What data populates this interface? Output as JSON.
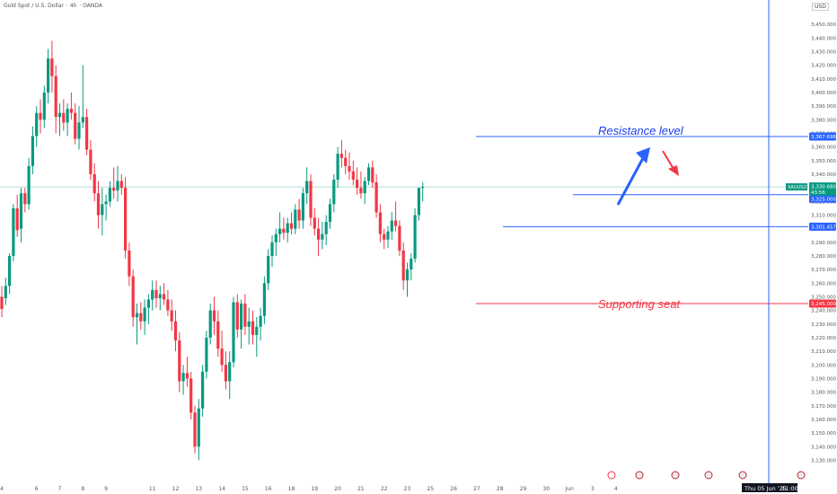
{
  "header": {
    "symbol_name": "Gold Spot / U.S. Dollar",
    "interval": "4h",
    "broker": "OANDA",
    "currency": "USD"
  },
  "colors": {
    "up": "#089981",
    "down": "#f23645",
    "resistance_line": "#2962ff",
    "support_line": "#f23645",
    "annotation_text": "#1e40e6",
    "support_text": "#f23645",
    "arrow_up": "#2962ff",
    "arrow_down": "#f23645",
    "vertical_marker": "#2962ff"
  },
  "chart_data": {
    "type": "candlestick",
    "ylim": [
      3125,
      3460
    ],
    "y_ticks": [
      "3,130.000",
      "3,140.000",
      "3,150.000",
      "3,160.000",
      "3,170.000",
      "3,180.000",
      "3,190.000",
      "3,200.000",
      "3,210.000",
      "3,220.000",
      "3,230.000",
      "3,240.000",
      "3,250.000",
      "3,260.000",
      "3,270.000",
      "3,280.000",
      "3,290.000",
      "3,300.000",
      "3,310.000",
      "3,320.000",
      "3,330.000",
      "3,340.000",
      "3,350.000",
      "3,360.000",
      "3,370.000",
      "3,380.000",
      "3,390.000",
      "3,400.000",
      "3,410.000",
      "3,420.000",
      "3,430.000",
      "3,440.000",
      "3,450.000"
    ],
    "x_ticks": [
      {
        "bar": 0,
        "label": "4"
      },
      {
        "bar": 9,
        "label": "6"
      },
      {
        "bar": 15,
        "label": "7"
      },
      {
        "bar": 21,
        "label": "8"
      },
      {
        "bar": 27,
        "label": "9"
      },
      {
        "bar": 39,
        "label": "11"
      },
      {
        "bar": 45,
        "label": "12"
      },
      {
        "bar": 51,
        "label": "13"
      },
      {
        "bar": 57,
        "label": "14"
      },
      {
        "bar": 63,
        "label": "15"
      },
      {
        "bar": 69,
        "label": "16"
      },
      {
        "bar": 75,
        "label": "18"
      },
      {
        "bar": 81,
        "label": "19"
      },
      {
        "bar": 87,
        "label": "20"
      },
      {
        "bar": 93,
        "label": "21"
      },
      {
        "bar": 99,
        "label": "22"
      },
      {
        "bar": 105,
        "label": "23"
      },
      {
        "bar": 111,
        "label": "25"
      },
      {
        "bar": 117,
        "label": "26"
      },
      {
        "bar": 123,
        "label": "27"
      },
      {
        "bar": 129,
        "label": "28"
      },
      {
        "bar": 135,
        "label": "29"
      },
      {
        "bar": 141,
        "label": "30"
      },
      {
        "bar": 147,
        "label": "Jun"
      },
      {
        "bar": 153,
        "label": "3"
      },
      {
        "bar": 159,
        "label": "4"
      }
    ],
    "candles": [
      {
        "o": 3250,
        "h": 3258,
        "l": 3235,
        "c": 3241
      },
      {
        "o": 3249,
        "h": 3264,
        "l": 3244,
        "c": 3258
      },
      {
        "o": 3258,
        "h": 3282,
        "l": 3252,
        "c": 3280
      },
      {
        "o": 3280,
        "h": 3318,
        "l": 3276,
        "c": 3315
      },
      {
        "o": 3315,
        "h": 3325,
        "l": 3294,
        "c": 3299
      },
      {
        "o": 3300,
        "h": 3330,
        "l": 3290,
        "c": 3326
      },
      {
        "o": 3326,
        "h": 3330,
        "l": 3312,
        "c": 3318
      },
      {
        "o": 3318,
        "h": 3352,
        "l": 3314,
        "c": 3346
      },
      {
        "o": 3346,
        "h": 3375,
        "l": 3340,
        "c": 3368
      },
      {
        "o": 3368,
        "h": 3390,
        "l": 3360,
        "c": 3385
      },
      {
        "o": 3385,
        "h": 3395,
        "l": 3370,
        "c": 3380
      },
      {
        "o": 3380,
        "h": 3405,
        "l": 3374,
        "c": 3400
      },
      {
        "o": 3400,
        "h": 3432,
        "l": 3392,
        "c": 3425
      },
      {
        "o": 3425,
        "h": 3438,
        "l": 3400,
        "c": 3412
      },
      {
        "o": 3412,
        "h": 3420,
        "l": 3370,
        "c": 3382
      },
      {
        "o": 3382,
        "h": 3392,
        "l": 3368,
        "c": 3385
      },
      {
        "o": 3385,
        "h": 3395,
        "l": 3372,
        "c": 3378
      },
      {
        "o": 3378,
        "h": 3392,
        "l": 3368,
        "c": 3388
      },
      {
        "o": 3388,
        "h": 3400,
        "l": 3380,
        "c": 3385
      },
      {
        "o": 3385,
        "h": 3392,
        "l": 3362,
        "c": 3366
      },
      {
        "o": 3366,
        "h": 3390,
        "l": 3358,
        "c": 3378
      },
      {
        "o": 3378,
        "h": 3420,
        "l": 3374,
        "c": 3382
      },
      {
        "o": 3382,
        "h": 3388,
        "l": 3354,
        "c": 3358
      },
      {
        "o": 3358,
        "h": 3365,
        "l": 3336,
        "c": 3340
      },
      {
        "o": 3340,
        "h": 3348,
        "l": 3320,
        "c": 3326
      },
      {
        "o": 3326,
        "h": 3335,
        "l": 3300,
        "c": 3310
      },
      {
        "o": 3310,
        "h": 3330,
        "l": 3295,
        "c": 3318
      },
      {
        "o": 3318,
        "h": 3325,
        "l": 3306,
        "c": 3320
      },
      {
        "o": 3320,
        "h": 3335,
        "l": 3316,
        "c": 3330
      },
      {
        "o": 3330,
        "h": 3345,
        "l": 3322,
        "c": 3328
      },
      {
        "o": 3328,
        "h": 3346,
        "l": 3320,
        "c": 3335
      },
      {
        "o": 3335,
        "h": 3340,
        "l": 3325,
        "c": 3330
      },
      {
        "o": 3330,
        "h": 3338,
        "l": 3278,
        "c": 3284
      },
      {
        "o": 3284,
        "h": 3290,
        "l": 3258,
        "c": 3265
      },
      {
        "o": 3265,
        "h": 3270,
        "l": 3228,
        "c": 3235
      },
      {
        "o": 3235,
        "h": 3245,
        "l": 3215,
        "c": 3238
      },
      {
        "o": 3238,
        "h": 3246,
        "l": 3226,
        "c": 3232
      },
      {
        "o": 3232,
        "h": 3248,
        "l": 3222,
        "c": 3242
      },
      {
        "o": 3242,
        "h": 3252,
        "l": 3230,
        "c": 3248
      },
      {
        "o": 3248,
        "h": 3262,
        "l": 3240,
        "c": 3255
      },
      {
        "o": 3255,
        "h": 3262,
        "l": 3242,
        "c": 3249
      },
      {
        "o": 3249,
        "h": 3258,
        "l": 3240,
        "c": 3252
      },
      {
        "o": 3252,
        "h": 3260,
        "l": 3244,
        "c": 3248
      },
      {
        "o": 3248,
        "h": 3255,
        "l": 3236,
        "c": 3240
      },
      {
        "o": 3240,
        "h": 3248,
        "l": 3225,
        "c": 3232
      },
      {
        "o": 3232,
        "h": 3240,
        "l": 3210,
        "c": 3218
      },
      {
        "o": 3218,
        "h": 3224,
        "l": 3180,
        "c": 3188
      },
      {
        "o": 3188,
        "h": 3200,
        "l": 3178,
        "c": 3194
      },
      {
        "o": 3194,
        "h": 3206,
        "l": 3184,
        "c": 3190
      },
      {
        "o": 3190,
        "h": 3195,
        "l": 3160,
        "c": 3165
      },
      {
        "o": 3165,
        "h": 3170,
        "l": 3135,
        "c": 3140
      },
      {
        "o": 3140,
        "h": 3175,
        "l": 3130,
        "c": 3168
      },
      {
        "o": 3168,
        "h": 3200,
        "l": 3162,
        "c": 3195
      },
      {
        "o": 3195,
        "h": 3225,
        "l": 3190,
        "c": 3220
      },
      {
        "o": 3220,
        "h": 3245,
        "l": 3215,
        "c": 3240
      },
      {
        "o": 3240,
        "h": 3250,
        "l": 3222,
        "c": 3232
      },
      {
        "o": 3232,
        "h": 3240,
        "l": 3206,
        "c": 3212
      },
      {
        "o": 3212,
        "h": 3225,
        "l": 3195,
        "c": 3200
      },
      {
        "o": 3200,
        "h": 3210,
        "l": 3182,
        "c": 3188
      },
      {
        "o": 3188,
        "h": 3210,
        "l": 3175,
        "c": 3202
      },
      {
        "o": 3202,
        "h": 3250,
        "l": 3198,
        "c": 3246
      },
      {
        "o": 3246,
        "h": 3252,
        "l": 3220,
        "c": 3226
      },
      {
        "o": 3226,
        "h": 3248,
        "l": 3212,
        "c": 3245
      },
      {
        "o": 3245,
        "h": 3252,
        "l": 3222,
        "c": 3228
      },
      {
        "o": 3228,
        "h": 3242,
        "l": 3215,
        "c": 3232
      },
      {
        "o": 3232,
        "h": 3240,
        "l": 3215,
        "c": 3222
      },
      {
        "o": 3222,
        "h": 3235,
        "l": 3206,
        "c": 3228
      },
      {
        "o": 3228,
        "h": 3242,
        "l": 3218,
        "c": 3236
      },
      {
        "o": 3236,
        "h": 3265,
        "l": 3230,
        "c": 3260
      },
      {
        "o": 3260,
        "h": 3285,
        "l": 3255,
        "c": 3280
      },
      {
        "o": 3280,
        "h": 3295,
        "l": 3272,
        "c": 3290
      },
      {
        "o": 3290,
        "h": 3300,
        "l": 3280,
        "c": 3296
      },
      {
        "o": 3296,
        "h": 3312,
        "l": 3290,
        "c": 3300
      },
      {
        "o": 3300,
        "h": 3308,
        "l": 3292,
        "c": 3297
      },
      {
        "o": 3297,
        "h": 3308,
        "l": 3290,
        "c": 3304
      },
      {
        "o": 3304,
        "h": 3312,
        "l": 3296,
        "c": 3300
      },
      {
        "o": 3300,
        "h": 3318,
        "l": 3296,
        "c": 3314
      },
      {
        "o": 3314,
        "h": 3322,
        "l": 3300,
        "c": 3306
      },
      {
        "o": 3306,
        "h": 3330,
        "l": 3300,
        "c": 3326
      },
      {
        "o": 3326,
        "h": 3345,
        "l": 3318,
        "c": 3335
      },
      {
        "o": 3335,
        "h": 3340,
        "l": 3302,
        "c": 3308
      },
      {
        "o": 3308,
        "h": 3315,
        "l": 3295,
        "c": 3300
      },
      {
        "o": 3300,
        "h": 3308,
        "l": 3280,
        "c": 3292
      },
      {
        "o": 3292,
        "h": 3305,
        "l": 3285,
        "c": 3296
      },
      {
        "o": 3296,
        "h": 3310,
        "l": 3288,
        "c": 3305
      },
      {
        "o": 3305,
        "h": 3322,
        "l": 3300,
        "c": 3318
      },
      {
        "o": 3318,
        "h": 3340,
        "l": 3312,
        "c": 3336
      },
      {
        "o": 3336,
        "h": 3360,
        "l": 3330,
        "c": 3355
      },
      {
        "o": 3355,
        "h": 3365,
        "l": 3345,
        "c": 3352
      },
      {
        "o": 3352,
        "h": 3358,
        "l": 3340,
        "c": 3346
      },
      {
        "o": 3346,
        "h": 3356,
        "l": 3336,
        "c": 3342
      },
      {
        "o": 3342,
        "h": 3350,
        "l": 3332,
        "c": 3336
      },
      {
        "o": 3336,
        "h": 3345,
        "l": 3325,
        "c": 3330
      },
      {
        "o": 3330,
        "h": 3342,
        "l": 3322,
        "c": 3326
      },
      {
        "o": 3326,
        "h": 3338,
        "l": 3318,
        "c": 3335
      },
      {
        "o": 3335,
        "h": 3348,
        "l": 3332,
        "c": 3345
      },
      {
        "o": 3345,
        "h": 3350,
        "l": 3330,
        "c": 3334
      },
      {
        "o": 3334,
        "h": 3340,
        "l": 3308,
        "c": 3312
      },
      {
        "o": 3312,
        "h": 3318,
        "l": 3290,
        "c": 3296
      },
      {
        "o": 3296,
        "h": 3300,
        "l": 3285,
        "c": 3292
      },
      {
        "o": 3292,
        "h": 3302,
        "l": 3286,
        "c": 3298
      },
      {
        "o": 3298,
        "h": 3312,
        "l": 3292,
        "c": 3306
      },
      {
        "o": 3306,
        "h": 3320,
        "l": 3298,
        "c": 3302
      },
      {
        "o": 3302,
        "h": 3306,
        "l": 3280,
        "c": 3284
      },
      {
        "o": 3284,
        "h": 3290,
        "l": 3255,
        "c": 3262
      },
      {
        "o": 3262,
        "h": 3275,
        "l": 3250,
        "c": 3270
      },
      {
        "o": 3270,
        "h": 3282,
        "l": 3262,
        "c": 3278
      },
      {
        "o": 3278,
        "h": 3315,
        "l": 3275,
        "c": 3310
      },
      {
        "o": 3310,
        "h": 3330,
        "l": 3306,
        "c": 3330
      },
      {
        "o": 3330,
        "h": 3334,
        "l": 3320,
        "c": 3330.68
      }
    ]
  },
  "annotations": {
    "resistance_label": "Resistance level",
    "support_label": "Supporting seat"
  },
  "price_tags": {
    "resistance_price": "3,367.698",
    "current_symbol": "XAUUSD",
    "current_price": "3,330.680",
    "countdown": "43:56",
    "level_325": "3,325.000",
    "level_301": "3,301.457",
    "support_price": "3,245.000"
  },
  "date_label": "Thu 05 Jun '25",
  "time_label": "11:00"
}
